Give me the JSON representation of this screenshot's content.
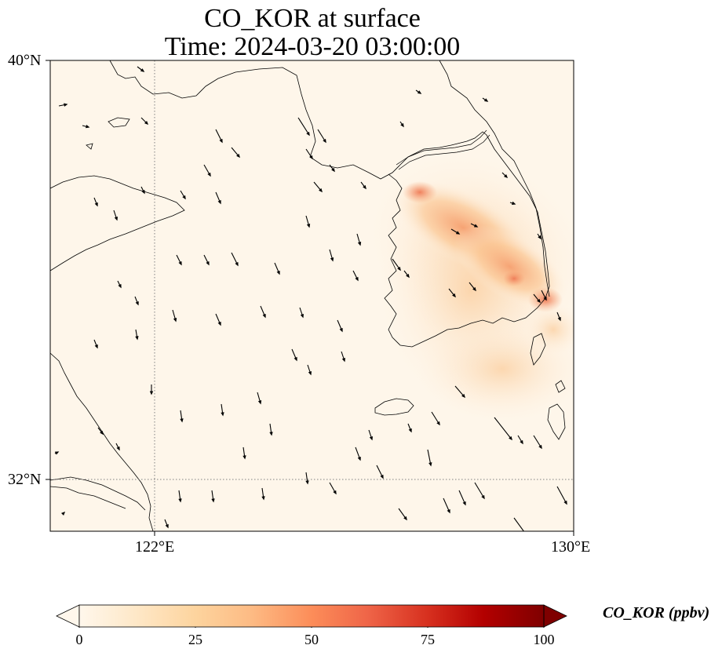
{
  "title_line1": "CO_KOR at surface",
  "title_line2": "Time: 2024-03-20 03:00:00",
  "lat_labels": [
    "40°N",
    "32°N"
  ],
  "lon_labels": [
    "122°E",
    "130°E"
  ],
  "colorbar": {
    "label": "CO_KOR (ppbv)",
    "ticks": [
      "0",
      "25",
      "50",
      "75",
      "100"
    ],
    "min": 0,
    "max": 100,
    "extend": "both",
    "colormap": "OrRd"
  },
  "map": {
    "lon_range": [
      120,
      130
    ],
    "lat_range": [
      31,
      40
    ],
    "gridlines": {
      "lon": [
        122,
        130
      ],
      "lat": [
        32,
        40
      ]
    },
    "background_color": "#fef6ea",
    "plume_color": "#f4925e",
    "plume_peak_color": "#ee7d58"
  }
}
